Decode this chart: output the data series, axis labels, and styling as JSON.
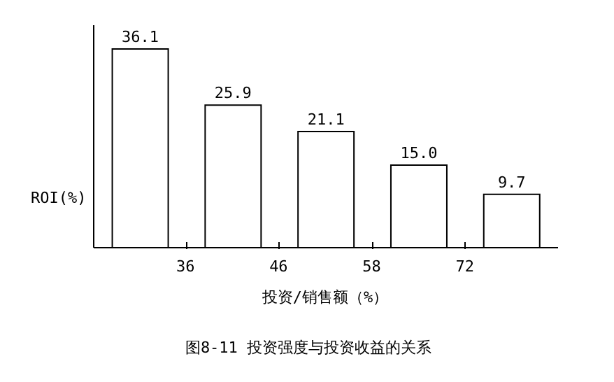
{
  "chart_data": {
    "type": "bar",
    "title": "图8-11  投资强度与投资收益的关系",
    "xlabel": "投资/销售额（%）",
    "ylabel": "ROI(%)",
    "categories": [
      null,
      null,
      null,
      null,
      null
    ],
    "values": [
      36.1,
      25.9,
      21.1,
      15.0,
      9.7
    ],
    "color": "#ffffff",
    "value_labels": [
      "36.1",
      "25.9",
      "21.1",
      "15.0",
      "9.7"
    ],
    "annotations": [
      "36",
      "46",
      "58",
      "72"
    ]
  }
}
